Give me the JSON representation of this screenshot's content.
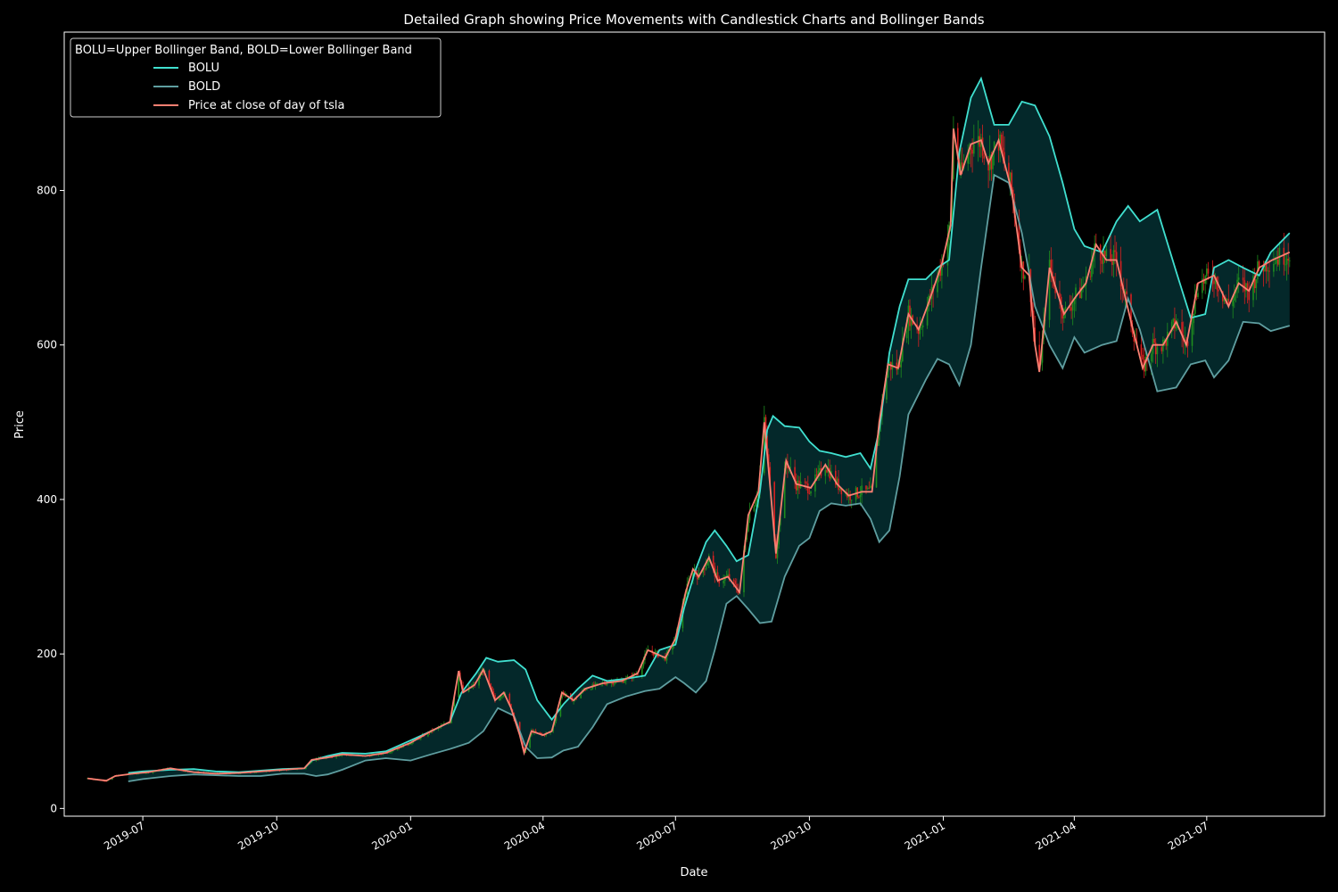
{
  "chart_data": {
    "type": "line",
    "title": "Detailed Graph showing Price Movements with Candlestick Charts and Bollinger Bands",
    "xlabel": "Date",
    "ylabel": "Price",
    "xlim": [
      "2019-05-08",
      "2021-09-20"
    ],
    "ylim": [
      -10,
      1005
    ],
    "x_ticks": [
      {
        "date": "2019-07-01",
        "label": "2019-07"
      },
      {
        "date": "2019-10-01",
        "label": "2019-10"
      },
      {
        "date": "2020-01-01",
        "label": "2020-01"
      },
      {
        "date": "2020-04-01",
        "label": "2020-04"
      },
      {
        "date": "2020-07-01",
        "label": "2020-07"
      },
      {
        "date": "2020-10-01",
        "label": "2020-10"
      },
      {
        "date": "2021-01-01",
        "label": "2021-01"
      },
      {
        "date": "2021-04-01",
        "label": "2021-04"
      },
      {
        "date": "2021-07-01",
        "label": "2021-07"
      }
    ],
    "y_ticks": [
      0,
      200,
      400,
      600,
      800
    ],
    "legend": {
      "title": "BOLU=Upper Bollinger Band, BOLD=Lower Bollinger Band",
      "placement": "top-left"
    },
    "band_fill_color": "#04282a",
    "series": [
      {
        "name": "BOLU",
        "color": "#40e0d0",
        "points": [
          [
            "2019-06-21",
            46
          ],
          [
            "2019-07-01",
            48
          ],
          [
            "2019-07-20",
            50
          ],
          [
            "2019-08-05",
            51
          ],
          [
            "2019-08-20",
            48
          ],
          [
            "2019-09-05",
            47
          ],
          [
            "2019-09-20",
            49
          ],
          [
            "2019-10-05",
            51
          ],
          [
            "2019-10-20",
            52
          ],
          [
            "2019-10-25",
            62
          ],
          [
            "2019-11-05",
            68
          ],
          [
            "2019-11-15",
            72
          ],
          [
            "2019-12-01",
            71
          ],
          [
            "2019-12-15",
            74
          ],
          [
            "2020-01-01",
            88
          ],
          [
            "2020-01-15",
            100
          ],
          [
            "2020-01-28",
            112
          ],
          [
            "2020-02-05",
            150
          ],
          [
            "2020-02-15",
            175
          ],
          [
            "2020-02-22",
            195
          ],
          [
            "2020-03-01",
            190
          ],
          [
            "2020-03-12",
            192
          ],
          [
            "2020-03-20",
            180
          ],
          [
            "2020-03-28",
            140
          ],
          [
            "2020-04-07",
            115
          ],
          [
            "2020-04-15",
            135
          ],
          [
            "2020-04-25",
            155
          ],
          [
            "2020-05-05",
            172
          ],
          [
            "2020-05-15",
            165
          ],
          [
            "2020-05-28",
            168
          ],
          [
            "2020-06-10",
            172
          ],
          [
            "2020-06-20",
            205
          ],
          [
            "2020-07-01",
            212
          ],
          [
            "2020-07-07",
            260
          ],
          [
            "2020-07-15",
            310
          ],
          [
            "2020-07-22",
            345
          ],
          [
            "2020-07-28",
            360
          ],
          [
            "2020-08-05",
            340
          ],
          [
            "2020-08-12",
            320
          ],
          [
            "2020-08-20",
            328
          ],
          [
            "2020-08-28",
            410
          ],
          [
            "2020-09-02",
            490
          ],
          [
            "2020-09-06",
            508
          ],
          [
            "2020-09-14",
            495
          ],
          [
            "2020-09-24",
            493
          ],
          [
            "2020-10-01",
            475
          ],
          [
            "2020-10-08",
            463
          ],
          [
            "2020-10-16",
            460
          ],
          [
            "2020-10-26",
            455
          ],
          [
            "2020-11-05",
            460
          ],
          [
            "2020-11-12",
            440
          ],
          [
            "2020-11-18",
            490
          ],
          [
            "2020-11-25",
            590
          ],
          [
            "2020-12-02",
            650
          ],
          [
            "2020-12-08",
            685
          ],
          [
            "2020-12-20",
            685
          ],
          [
            "2020-12-28",
            700
          ],
          [
            "2021-01-05",
            710
          ],
          [
            "2021-01-12",
            850
          ],
          [
            "2021-01-20",
            920
          ],
          [
            "2021-01-27",
            945
          ],
          [
            "2021-02-05",
            885
          ],
          [
            "2021-02-15",
            885
          ],
          [
            "2021-02-24",
            915
          ],
          [
            "2021-03-05",
            910
          ],
          [
            "2021-03-15",
            870
          ],
          [
            "2021-03-24",
            810
          ],
          [
            "2021-04-01",
            750
          ],
          [
            "2021-04-08",
            728
          ],
          [
            "2021-04-20",
            720
          ],
          [
            "2021-04-30",
            760
          ],
          [
            "2021-05-08",
            780
          ],
          [
            "2021-05-16",
            760
          ],
          [
            "2021-05-28",
            775
          ],
          [
            "2021-06-10",
            695
          ],
          [
            "2021-06-20",
            635
          ],
          [
            "2021-06-30",
            640
          ],
          [
            "2021-07-06",
            700
          ],
          [
            "2021-07-16",
            710
          ],
          [
            "2021-07-26",
            700
          ],
          [
            "2021-08-06",
            690
          ],
          [
            "2021-08-14",
            720
          ],
          [
            "2021-08-27",
            745
          ]
        ]
      },
      {
        "name": "BOLD",
        "color": "#5f9ea0",
        "points": [
          [
            "2019-06-21",
            35
          ],
          [
            "2019-07-01",
            38
          ],
          [
            "2019-07-20",
            42
          ],
          [
            "2019-08-05",
            44
          ],
          [
            "2019-08-20",
            43
          ],
          [
            "2019-09-05",
            42
          ],
          [
            "2019-09-20",
            42
          ],
          [
            "2019-10-05",
            45
          ],
          [
            "2019-10-20",
            45
          ],
          [
            "2019-10-28",
            42
          ],
          [
            "2019-11-05",
            44
          ],
          [
            "2019-11-15",
            50
          ],
          [
            "2019-12-01",
            62
          ],
          [
            "2019-12-15",
            65
          ],
          [
            "2020-01-01",
            62
          ],
          [
            "2020-01-15",
            70
          ],
          [
            "2020-01-28",
            77
          ],
          [
            "2020-02-10",
            85
          ],
          [
            "2020-02-20",
            100
          ],
          [
            "2020-03-01",
            130
          ],
          [
            "2020-03-12",
            120
          ],
          [
            "2020-03-20",
            80
          ],
          [
            "2020-03-28",
            65
          ],
          [
            "2020-04-07",
            66
          ],
          [
            "2020-04-15",
            75
          ],
          [
            "2020-04-25",
            80
          ],
          [
            "2020-05-05",
            105
          ],
          [
            "2020-05-15",
            135
          ],
          [
            "2020-05-28",
            145
          ],
          [
            "2020-06-10",
            152
          ],
          [
            "2020-06-20",
            155
          ],
          [
            "2020-07-01",
            170
          ],
          [
            "2020-07-07",
            162
          ],
          [
            "2020-07-15",
            150
          ],
          [
            "2020-07-22",
            165
          ],
          [
            "2020-07-28",
            205
          ],
          [
            "2020-08-05",
            265
          ],
          [
            "2020-08-12",
            275
          ],
          [
            "2020-08-20",
            258
          ],
          [
            "2020-08-28",
            240
          ],
          [
            "2020-09-05",
            242
          ],
          [
            "2020-09-14",
            300
          ],
          [
            "2020-09-24",
            340
          ],
          [
            "2020-10-01",
            350
          ],
          [
            "2020-10-08",
            385
          ],
          [
            "2020-10-16",
            395
          ],
          [
            "2020-10-26",
            392
          ],
          [
            "2020-11-05",
            395
          ],
          [
            "2020-11-12",
            375
          ],
          [
            "2020-11-18",
            345
          ],
          [
            "2020-11-25",
            360
          ],
          [
            "2020-12-02",
            430
          ],
          [
            "2020-12-08",
            510
          ],
          [
            "2020-12-20",
            555
          ],
          [
            "2020-12-28",
            582
          ],
          [
            "2021-01-05",
            575
          ],
          [
            "2021-01-12",
            548
          ],
          [
            "2021-01-20",
            600
          ],
          [
            "2021-01-27",
            700
          ],
          [
            "2021-02-05",
            820
          ],
          [
            "2021-02-15",
            810
          ],
          [
            "2021-02-24",
            745
          ],
          [
            "2021-03-05",
            650
          ],
          [
            "2021-03-15",
            600
          ],
          [
            "2021-03-24",
            570
          ],
          [
            "2021-04-01",
            610
          ],
          [
            "2021-04-08",
            590
          ],
          [
            "2021-04-20",
            600
          ],
          [
            "2021-04-30",
            605
          ],
          [
            "2021-05-08",
            660
          ],
          [
            "2021-05-16",
            620
          ],
          [
            "2021-05-28",
            540
          ],
          [
            "2021-06-10",
            545
          ],
          [
            "2021-06-20",
            575
          ],
          [
            "2021-06-30",
            580
          ],
          [
            "2021-07-06",
            558
          ],
          [
            "2021-07-16",
            580
          ],
          [
            "2021-07-26",
            630
          ],
          [
            "2021-08-06",
            628
          ],
          [
            "2021-08-14",
            618
          ],
          [
            "2021-08-27",
            625
          ]
        ]
      },
      {
        "name": "Price at close of day of tsla",
        "color": "#fa8072",
        "points": [
          [
            "2019-05-24",
            39
          ],
          [
            "2019-06-01",
            37
          ],
          [
            "2019-06-06",
            36
          ],
          [
            "2019-06-12",
            42
          ],
          [
            "2019-06-24",
            45
          ],
          [
            "2019-07-05",
            47
          ],
          [
            "2019-07-20",
            52
          ],
          [
            "2019-08-05",
            47
          ],
          [
            "2019-08-20",
            45
          ],
          [
            "2019-09-05",
            46
          ],
          [
            "2019-09-20",
            48
          ],
          [
            "2019-10-05",
            50
          ],
          [
            "2019-10-20",
            52
          ],
          [
            "2019-10-25",
            63
          ],
          [
            "2019-11-05",
            66
          ],
          [
            "2019-11-15",
            70
          ],
          [
            "2019-12-01",
            68
          ],
          [
            "2019-12-15",
            72
          ],
          [
            "2020-01-01",
            85
          ],
          [
            "2020-01-15",
            100
          ],
          [
            "2020-01-28",
            112
          ],
          [
            "2020-02-03",
            178
          ],
          [
            "2020-02-06",
            150
          ],
          [
            "2020-02-14",
            160
          ],
          [
            "2020-02-20",
            180
          ],
          [
            "2020-02-28",
            140
          ],
          [
            "2020-03-05",
            150
          ],
          [
            "2020-03-10",
            130
          ],
          [
            "2020-03-16",
            95
          ],
          [
            "2020-03-19",
            72
          ],
          [
            "2020-03-24",
            100
          ],
          [
            "2020-04-01",
            95
          ],
          [
            "2020-04-07",
            100
          ],
          [
            "2020-04-14",
            150
          ],
          [
            "2020-04-22",
            140
          ],
          [
            "2020-04-30",
            155
          ],
          [
            "2020-05-12",
            162
          ],
          [
            "2020-05-25",
            165
          ],
          [
            "2020-06-05",
            175
          ],
          [
            "2020-06-12",
            205
          ],
          [
            "2020-06-24",
            195
          ],
          [
            "2020-07-01",
            220
          ],
          [
            "2020-07-08",
            280
          ],
          [
            "2020-07-13",
            310
          ],
          [
            "2020-07-17",
            300
          ],
          [
            "2020-07-24",
            325
          ],
          [
            "2020-07-30",
            295
          ],
          [
            "2020-08-06",
            300
          ],
          [
            "2020-08-14",
            280
          ],
          [
            "2020-08-20",
            380
          ],
          [
            "2020-08-27",
            410
          ],
          [
            "2020-08-31",
            500
          ],
          [
            "2020-09-04",
            418
          ],
          [
            "2020-09-08",
            330
          ],
          [
            "2020-09-15",
            450
          ],
          [
            "2020-09-22",
            420
          ],
          [
            "2020-10-02",
            415
          ],
          [
            "2020-10-12",
            445
          ],
          [
            "2020-10-20",
            420
          ],
          [
            "2020-10-28",
            405
          ],
          [
            "2020-11-06",
            410
          ],
          [
            "2020-11-13",
            410
          ],
          [
            "2020-11-18",
            500
          ],
          [
            "2020-11-24",
            575
          ],
          [
            "2020-12-01",
            570
          ],
          [
            "2020-12-08",
            640
          ],
          [
            "2020-12-15",
            620
          ],
          [
            "2020-12-21",
            650
          ],
          [
            "2020-12-31",
            705
          ],
          [
            "2021-01-06",
            755
          ],
          [
            "2021-01-08",
            880
          ],
          [
            "2021-01-13",
            820
          ],
          [
            "2021-01-20",
            860
          ],
          [
            "2021-01-27",
            865
          ],
          [
            "2021-02-01",
            835
          ],
          [
            "2021-02-08",
            865
          ],
          [
            "2021-02-17",
            800
          ],
          [
            "2021-02-24",
            700
          ],
          [
            "2021-03-01",
            690
          ],
          [
            "2021-03-05",
            600
          ],
          [
            "2021-03-08",
            565
          ],
          [
            "2021-03-15",
            700
          ],
          [
            "2021-03-25",
            640
          ],
          [
            "2021-04-01",
            660
          ],
          [
            "2021-04-09",
            680
          ],
          [
            "2021-04-16",
            730
          ],
          [
            "2021-04-23",
            710
          ],
          [
            "2021-04-30",
            710
          ],
          [
            "2021-05-10",
            630
          ],
          [
            "2021-05-18",
            570
          ],
          [
            "2021-05-25",
            600
          ],
          [
            "2021-06-01",
            600
          ],
          [
            "2021-06-10",
            630
          ],
          [
            "2021-06-17",
            600
          ],
          [
            "2021-06-25",
            680
          ],
          [
            "2021-07-06",
            690
          ],
          [
            "2021-07-16",
            650
          ],
          [
            "2021-07-23",
            680
          ],
          [
            "2021-07-30",
            670
          ],
          [
            "2021-08-06",
            700
          ],
          [
            "2021-08-15",
            710
          ],
          [
            "2021-08-27",
            720
          ]
        ]
      }
    ]
  }
}
